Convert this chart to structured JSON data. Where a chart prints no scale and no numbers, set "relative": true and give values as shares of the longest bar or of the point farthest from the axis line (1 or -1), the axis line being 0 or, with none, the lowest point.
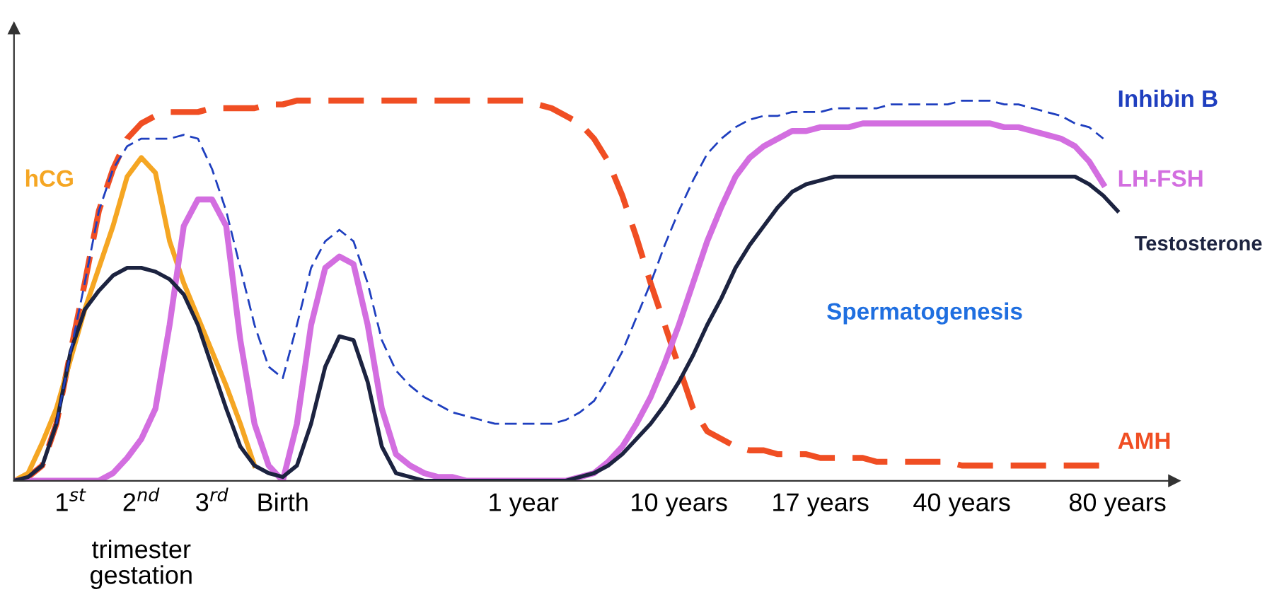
{
  "chart_data": {
    "type": "line",
    "relative": true,
    "xlabel": "trimester\ngestation",
    "categories": [
      null,
      null,
      null,
      null,
      "1$^{st}$",
      null,
      null,
      null,
      null,
      "2$^{nd}$",
      null,
      null,
      null,
      null,
      "3$^{rd}$",
      null,
      null,
      null,
      null,
      "Birth",
      null,
      null,
      null,
      null,
      null,
      null,
      null,
      null,
      null,
      null,
      null,
      null,
      null,
      null,
      null,
      null,
      "1 year",
      null,
      null,
      null,
      null,
      null,
      null,
      null,
      null,
      null,
      null,
      "10 years",
      null,
      null,
      null,
      null,
      null,
      null,
      null,
      null,
      null,
      "17 years",
      null,
      null,
      null,
      null,
      null,
      null,
      null,
      null,
      null,
      "40 years",
      null,
      null,
      null,
      null,
      null,
      null,
      null,
      null,
      null,
      null,
      "80 years",
      null
    ],
    "grid": false,
    "legend": false,
    "marker": "none",
    "series": [
      {
        "name": "AMH",
        "color": "#f04e23",
        "line_style": "dashed",
        "values": [
          0,
          0.01,
          0.04,
          0.15,
          0.34,
          0.52,
          0.71,
          0.82,
          0.9,
          0.94,
          0.96,
          0.97,
          0.97,
          0.97,
          0.98,
          0.98,
          0.98,
          0.98,
          0.99,
          0.99,
          1.0,
          1.0,
          1.0,
          1.0,
          1.0,
          1.0,
          1.0,
          1.0,
          1.0,
          1.0,
          1.0,
          1.0,
          1.0,
          1.0,
          1.0,
          1.0,
          1.0,
          0.99,
          0.98,
          0.96,
          0.94,
          0.9,
          0.84,
          0.75,
          0.64,
          0.52,
          0.41,
          0.3,
          0.19,
          0.13,
          0.11,
          0.09,
          0.08,
          0.08,
          0.07,
          0.07,
          0.07,
          0.06,
          0.06,
          0.06,
          0.06,
          0.05,
          0.05,
          0.05,
          0.05,
          0.05,
          0.05,
          0.04,
          0.04,
          0.04,
          0.04,
          0.04,
          0.04,
          0.04,
          0.04,
          0.04,
          0.04,
          0.04,
          null,
          null
        ]
      },
      {
        "name": "hCG",
        "color": "#f5a623",
        "line_style": "solid",
        "values": [
          0,
          0.02,
          0.1,
          0.19,
          0.32,
          0.45,
          0.56,
          0.67,
          0.8,
          0.85,
          0.81,
          0.63,
          0.52,
          0.43,
          0.34,
          0.25,
          0.15,
          0.04,
          null,
          null,
          null,
          null,
          null,
          null,
          null,
          null,
          null,
          null,
          null,
          null,
          null,
          null,
          null,
          null,
          null,
          null,
          null,
          null,
          null,
          null,
          null,
          null,
          null,
          null,
          null,
          null,
          null,
          null,
          null,
          null,
          null,
          null,
          null,
          null,
          null,
          null,
          null,
          null,
          null,
          null,
          null,
          null,
          null,
          null,
          null,
          null,
          null,
          null,
          null,
          null,
          null,
          null,
          null,
          null,
          null,
          null,
          null,
          null,
          null,
          null
        ]
      },
      {
        "name": "Inhibin B",
        "color": "#1f3fbf",
        "line_style": "dashed",
        "values": [
          null,
          null,
          null,
          0.15,
          0.34,
          0.52,
          0.71,
          0.82,
          0.88,
          0.9,
          0.9,
          0.9,
          0.91,
          0.9,
          0.82,
          0.71,
          0.56,
          0.41,
          0.3,
          0.27,
          0.41,
          0.56,
          0.63,
          0.66,
          0.63,
          0.52,
          0.37,
          0.29,
          0.25,
          0.22,
          0.2,
          0.18,
          0.17,
          0.16,
          0.15,
          0.15,
          0.15,
          0.15,
          0.15,
          0.16,
          0.18,
          0.21,
          0.27,
          0.34,
          0.43,
          0.52,
          0.62,
          0.71,
          0.79,
          0.86,
          0.9,
          0.93,
          0.95,
          0.96,
          0.96,
          0.97,
          0.97,
          0.97,
          0.98,
          0.98,
          0.98,
          0.98,
          0.99,
          0.99,
          0.99,
          0.99,
          0.99,
          1.0,
          1.0,
          1.0,
          0.99,
          0.99,
          0.98,
          0.97,
          0.96,
          0.94,
          0.93,
          0.9,
          null,
          null
        ]
      },
      {
        "name": "LH-FSH",
        "color": "#d36ee0",
        "line_style": "solid",
        "values": [
          0,
          0,
          0,
          0,
          0,
          0,
          0,
          0.02,
          0.06,
          0.11,
          0.19,
          0.41,
          0.67,
          0.74,
          0.74,
          0.67,
          0.37,
          0.15,
          0.04,
          0,
          0.15,
          0.41,
          0.56,
          0.59,
          0.57,
          0.41,
          0.19,
          0.07,
          0.04,
          0.02,
          0.01,
          0.01,
          0,
          0,
          0,
          0,
          0,
          0,
          0,
          0,
          0.01,
          0.02,
          0.05,
          0.09,
          0.15,
          0.22,
          0.31,
          0.41,
          0.52,
          0.63,
          0.72,
          0.8,
          0.85,
          0.88,
          0.9,
          0.92,
          0.92,
          0.93,
          0.93,
          0.93,
          0.94,
          0.94,
          0.94,
          0.94,
          0.94,
          0.94,
          0.94,
          0.94,
          0.94,
          0.94,
          0.93,
          0.93,
          0.92,
          0.91,
          0.9,
          0.88,
          0.84,
          0.78,
          null,
          null
        ]
      },
      {
        "name": "Testosterone",
        "color": "#1c2340",
        "line_style": "solid",
        "values": [
          0,
          0.01,
          0.04,
          0.15,
          0.34,
          0.45,
          0.5,
          0.54,
          0.56,
          0.56,
          0.55,
          0.53,
          0.49,
          0.41,
          0.3,
          0.19,
          0.09,
          0.04,
          0.02,
          0.01,
          0.04,
          0.15,
          0.3,
          0.38,
          0.37,
          0.26,
          0.09,
          0.02,
          0.01,
          0,
          0,
          0,
          0,
          0,
          0,
          0,
          0,
          0,
          0,
          0,
          0.01,
          0.02,
          0.04,
          0.07,
          0.11,
          0.15,
          0.2,
          0.26,
          0.33,
          0.41,
          0.48,
          0.56,
          0.62,
          0.67,
          0.72,
          0.76,
          0.78,
          0.79,
          0.8,
          0.8,
          0.8,
          0.8,
          0.8,
          0.8,
          0.8,
          0.8,
          0.8,
          0.8,
          0.8,
          0.8,
          0.8,
          0.8,
          0.8,
          0.8,
          0.8,
          0.8,
          0.78,
          0.75,
          0.71,
          null
        ]
      }
    ],
    "annotations": [
      "Spermatogenesis"
    ]
  }
}
